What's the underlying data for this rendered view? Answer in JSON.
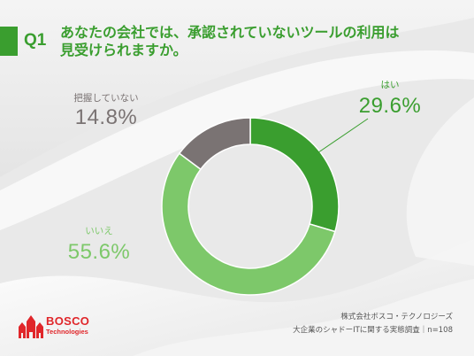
{
  "header": {
    "question_number": "Q1",
    "title_lines": [
      "あなたの会社では、承認されていないツールの利用は",
      "見受けられますか。"
    ]
  },
  "chart_data": {
    "type": "pie",
    "donut": true,
    "categories": [
      "はい",
      "いいえ",
      "把握していない"
    ],
    "values": [
      29.6,
      55.6,
      14.8
    ],
    "value_labels": [
      "29.6%",
      "55.6%",
      "14.8%"
    ],
    "colors": [
      "#3a9e2f",
      "#7dc86a",
      "#7a7373"
    ]
  },
  "footer": {
    "logo": {
      "name": "BOSCO",
      "sub": "Technologies"
    },
    "company": "株式会社ボスコ・テクノロジーズ",
    "survey": "大企業のシャドーITに関する実態調査｜n=108"
  },
  "theme": {
    "accent": "#3a9e2f",
    "logo_red": "#e0262a",
    "text_gray": "#555555",
    "background": "#ebebeb"
  }
}
